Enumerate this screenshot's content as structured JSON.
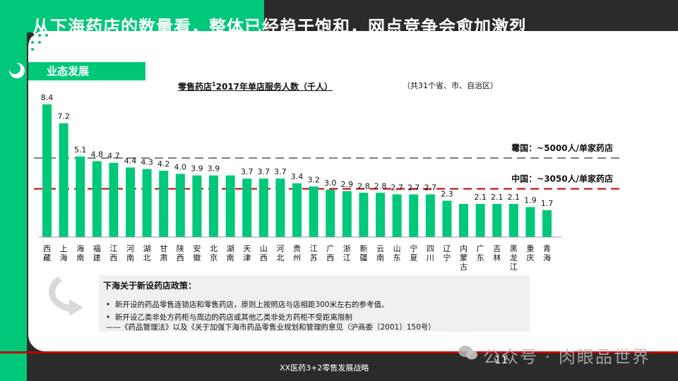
{
  "headline": "从下海药店的数量看，整体已经趋于饱和，网点竞争会愈加激烈",
  "section_tag": "业态发展",
  "chart_title_main": "零售药店",
  "chart_title_sup": "1",
  "chart_title_rest": "2017年单店服务人数（千人）",
  "chart_subtitle": "（共31个省、市、自治区）",
  "colors": {
    "accent": "#00c87a",
    "bar": "#00c87a",
    "ref_japan": "#7f7f7f",
    "ref_china": "#c00000"
  },
  "chart_data": {
    "type": "bar",
    "categories": [
      "西藏",
      "上海",
      "海南",
      "福建",
      "江西",
      "河南",
      "湖北",
      "甘肃",
      "陕西",
      "安徽",
      "北京",
      "湖南",
      "天津",
      "山西",
      "河北",
      "贵州",
      "江苏",
      "广西",
      "浙江",
      "新疆",
      "云南",
      "山东",
      "宁夏",
      "四川",
      "辽宁",
      "内蒙古",
      "广东",
      "吉林",
      "黑龙江",
      "重庆",
      "青海"
    ],
    "values": [
      8.4,
      7.2,
      5.1,
      4.8,
      4.7,
      4.4,
      4.3,
      4.2,
      4.0,
      3.9,
      3.9,
      null,
      3.7,
      3.7,
      3.7,
      3.4,
      3.2,
      3.0,
      2.9,
      2.8,
      2.8,
      2.7,
      2.7,
      2.7,
      2.3,
      null,
      2.1,
      2.1,
      2.1,
      1.9,
      1.7
    ],
    "bar_heights_in_units": [
      8.4,
      7.2,
      5.1,
      4.8,
      4.7,
      4.4,
      4.3,
      4.2,
      4.0,
      3.9,
      3.9,
      3.9,
      3.7,
      3.7,
      3.7,
      3.4,
      3.2,
      3.0,
      2.9,
      2.8,
      2.8,
      2.7,
      2.7,
      2.7,
      2.3,
      2.1,
      2.1,
      2.1,
      2.1,
      1.9,
      1.7
    ],
    "data_labels": [
      "8.4",
      "7.2",
      "5.1",
      "4.8",
      "4.7",
      "4.4",
      "4.3",
      "4.2",
      "4.0",
      "3.9",
      "3.9",
      "",
      "3.7",
      "3.7",
      "3.7",
      "3.4",
      "3.2",
      "3.0",
      "2.9",
      "2.8",
      "2.8",
      "2.7",
      "2.7",
      "2.7",
      "2.3",
      "",
      "2.1",
      "2.1",
      "2.1",
      "1.9",
      "1.7"
    ],
    "ylim": [
      0,
      9
    ],
    "reference_lines": [
      {
        "label": "霉国：~5000人/单家药店",
        "value": 5.0,
        "style": "dashed",
        "color": "#7f7f7f"
      },
      {
        "label": "中国：~3050人/单家药店",
        "value": 3.05,
        "style": "dashed",
        "color": "#c00000"
      }
    ],
    "grid": false,
    "legend": "none"
  },
  "policy": {
    "title": "下海关于新设药店政策：",
    "bullets": [
      "新开设的药品零售连锁店和零售药店，原则上按照店与店相距300米左右的参考值。",
      "新开设乙类非处方药柜与周边的药店或其他乙类非处方药柜不受距离限制"
    ],
    "source": "——《药品管理法》以及《关于加强下海市药品零售业规划和管理的意见（沪商委〔2001〕150号）"
  },
  "footer": "XX医药3+2零售发展战略",
  "page_number": "11",
  "watermark": "公众号 · 肉眼品世界"
}
